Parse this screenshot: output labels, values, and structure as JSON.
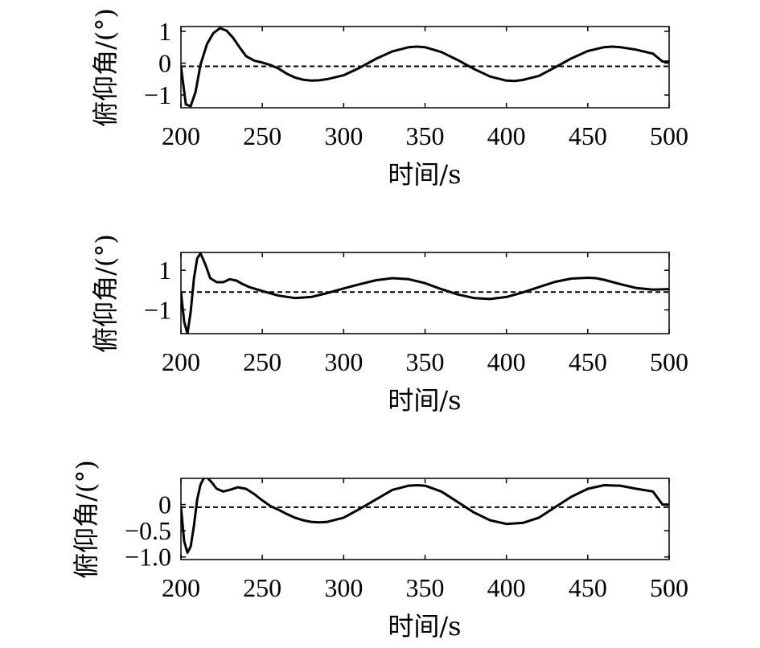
{
  "chart_data": [
    {
      "type": "line",
      "xlabel": "时间/s",
      "ylabel": "俯仰角/(°)",
      "xlim": [
        200,
        500
      ],
      "ylim": [
        -1.4,
        1.15
      ],
      "xticks": [
        200,
        250,
        300,
        350,
        400,
        450,
        500
      ],
      "xtick_labels": [
        "200",
        "250",
        "300",
        "350",
        "400",
        "450",
        "500"
      ],
      "yticks": [
        1,
        0,
        -1
      ],
      "ytick_labels": [
        "1",
        "0",
        "−1"
      ],
      "reference_line": -0.1,
      "series": [
        {
          "style": "solid",
          "x": [
            200,
            203,
            206,
            209,
            212,
            216,
            220,
            224,
            228,
            232,
            236,
            240,
            245,
            250,
            255,
            260,
            265,
            270,
            275,
            280,
            285,
            290,
            300,
            310,
            320,
            330,
            340,
            345,
            350,
            360,
            370,
            380,
            390,
            400,
            405,
            410,
            420,
            430,
            440,
            450,
            460,
            465,
            470,
            480,
            490,
            496,
            500
          ],
          "y": [
            -0.1,
            -1.3,
            -1.35,
            -0.9,
            -0.05,
            0.6,
            0.95,
            1.1,
            1.02,
            0.8,
            0.5,
            0.22,
            0.08,
            0.02,
            -0.06,
            -0.17,
            -0.33,
            -0.45,
            -0.52,
            -0.55,
            -0.54,
            -0.5,
            -0.38,
            -0.14,
            0.14,
            0.37,
            0.5,
            0.52,
            0.5,
            0.35,
            0.1,
            -0.18,
            -0.42,
            -0.55,
            -0.56,
            -0.53,
            -0.4,
            -0.13,
            0.15,
            0.38,
            0.5,
            0.52,
            0.5,
            0.42,
            0.3,
            0.05,
            0.05
          ]
        }
      ]
    },
    {
      "type": "line",
      "xlabel": "时间/s",
      "ylabel": "俯仰角/(°)",
      "xlim": [
        200,
        500
      ],
      "ylim": [
        -2.2,
        1.9
      ],
      "xticks": [
        200,
        250,
        300,
        350,
        400,
        450,
        500
      ],
      "xtick_labels": [
        "200",
        "250",
        "300",
        "350",
        "400",
        "450",
        "500"
      ],
      "yticks": [
        1,
        -1
      ],
      "ytick_labels": [
        "1",
        "−1"
      ],
      "reference_line": -0.1,
      "series": [
        {
          "style": "solid",
          "x": [
            200,
            202,
            204,
            206,
            208,
            210,
            212,
            215,
            218,
            222,
            226,
            230,
            234,
            238,
            242,
            246,
            250,
            260,
            270,
            280,
            290,
            300,
            310,
            320,
            330,
            340,
            350,
            360,
            370,
            380,
            390,
            400,
            410,
            420,
            430,
            440,
            450,
            455,
            460,
            470,
            480,
            490,
            500
          ],
          "y": [
            -0.1,
            -1.6,
            -2.2,
            -1.1,
            0.6,
            1.6,
            1.85,
            1.3,
            0.6,
            0.4,
            0.4,
            0.55,
            0.48,
            0.3,
            0.15,
            0.05,
            -0.05,
            -0.28,
            -0.4,
            -0.35,
            -0.15,
            0.08,
            0.3,
            0.5,
            0.6,
            0.55,
            0.35,
            0.05,
            -0.22,
            -0.4,
            -0.45,
            -0.35,
            -0.12,
            0.15,
            0.42,
            0.58,
            0.62,
            0.6,
            0.52,
            0.3,
            0.1,
            0.02,
            0.05
          ]
        }
      ]
    },
    {
      "type": "line",
      "xlabel": "时间/s",
      "ylabel": "俯仰角/(°)",
      "xlim": [
        200,
        500
      ],
      "ylim": [
        -1.05,
        0.5
      ],
      "xticks": [
        200,
        250,
        300,
        350,
        400,
        450,
        500
      ],
      "xtick_labels": [
        "200",
        "250",
        "300",
        "350",
        "400",
        "450",
        "500"
      ],
      "yticks": [
        0,
        -0.5,
        -1.0
      ],
      "ytick_labels": [
        "0",
        "−0.5",
        "−1.0"
      ],
      "reference_line": -0.05,
      "series": [
        {
          "style": "solid",
          "x": [
            200,
            202,
            204,
            206,
            208,
            210,
            212,
            214,
            216,
            219,
            222,
            226,
            230,
            235,
            240,
            245,
            250,
            255,
            260,
            265,
            270,
            275,
            280,
            285,
            290,
            300,
            310,
            320,
            330,
            340,
            345,
            350,
            360,
            370,
            380,
            390,
            400,
            410,
            420,
            430,
            440,
            450,
            460,
            470,
            480,
            490,
            496,
            500
          ],
          "y": [
            -0.05,
            -0.7,
            -0.92,
            -0.8,
            -0.4,
            0.1,
            0.38,
            0.5,
            0.52,
            0.42,
            0.3,
            0.25,
            0.28,
            0.33,
            0.3,
            0.2,
            0.08,
            -0.03,
            -0.1,
            -0.18,
            -0.25,
            -0.3,
            -0.33,
            -0.34,
            -0.33,
            -0.25,
            -0.08,
            0.1,
            0.28,
            0.36,
            0.37,
            0.36,
            0.25,
            0.05,
            -0.15,
            -0.3,
            -0.37,
            -0.35,
            -0.25,
            -0.05,
            0.15,
            0.3,
            0.37,
            0.36,
            0.3,
            0.25,
            0.0,
            0.0
          ]
        }
      ]
    }
  ]
}
